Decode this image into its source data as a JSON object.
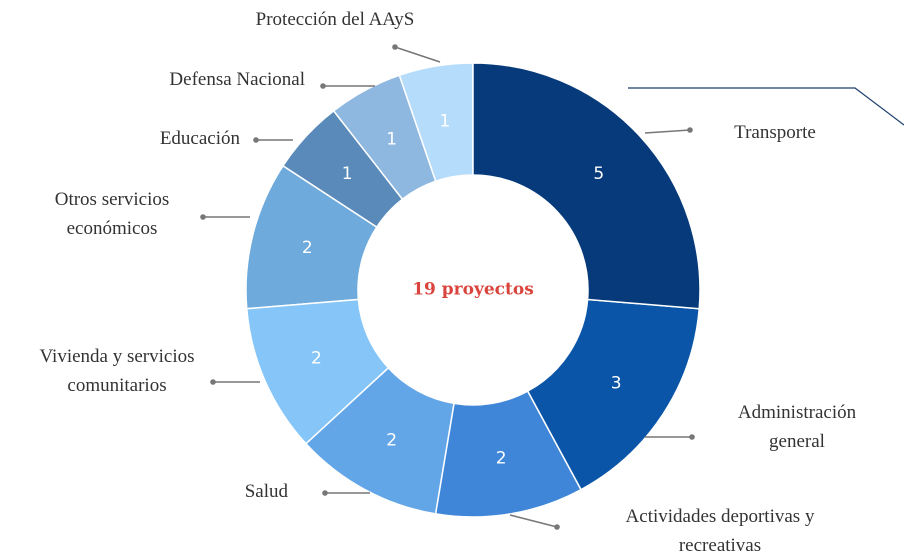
{
  "chart_data": {
    "type": "donut",
    "center_label": "19 proyectos",
    "categories": [
      "Transporte",
      "Administración general",
      "Actividades deportivas y recreativas",
      "Salud",
      "Vivienda y servicios comunitarios",
      "Otros servicios económicos",
      "Educación",
      "Defensa Nacional",
      "Protección del AAyS"
    ],
    "values": [
      5,
      3,
      2,
      2,
      2,
      2,
      1,
      1,
      1
    ],
    "colors": [
      "#073a7a",
      "#0a55a8",
      "#3f86d8",
      "#63a6e8",
      "#85c5f7",
      "#6eaadc",
      "#5a8ab9",
      "#8fb8e0",
      "#b6dcfb"
    ]
  }
}
